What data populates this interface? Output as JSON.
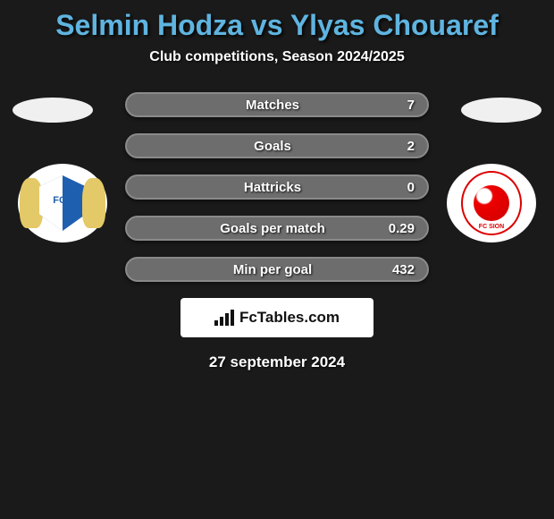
{
  "title": "Selmin Hodza vs Ylyas Chouaref",
  "subtitle": "Club competitions, Season 2024/2025",
  "stats": [
    {
      "label": "Matches",
      "value": "7"
    },
    {
      "label": "Goals",
      "value": "2"
    },
    {
      "label": "Hattricks",
      "value": "0"
    },
    {
      "label": "Goals per match",
      "value": "0.29"
    },
    {
      "label": "Min per goal",
      "value": "432"
    }
  ],
  "brand": "FcTables.com",
  "date": "27 september 2024",
  "colors": {
    "background": "#1a1a1a",
    "title": "#5fb4e0",
    "bar_bg": "#6d6d6d",
    "bar_border": "#8a8a8a",
    "text": "#ffffff"
  },
  "clubs": {
    "left": "FCZ",
    "right": "FC Sion"
  }
}
